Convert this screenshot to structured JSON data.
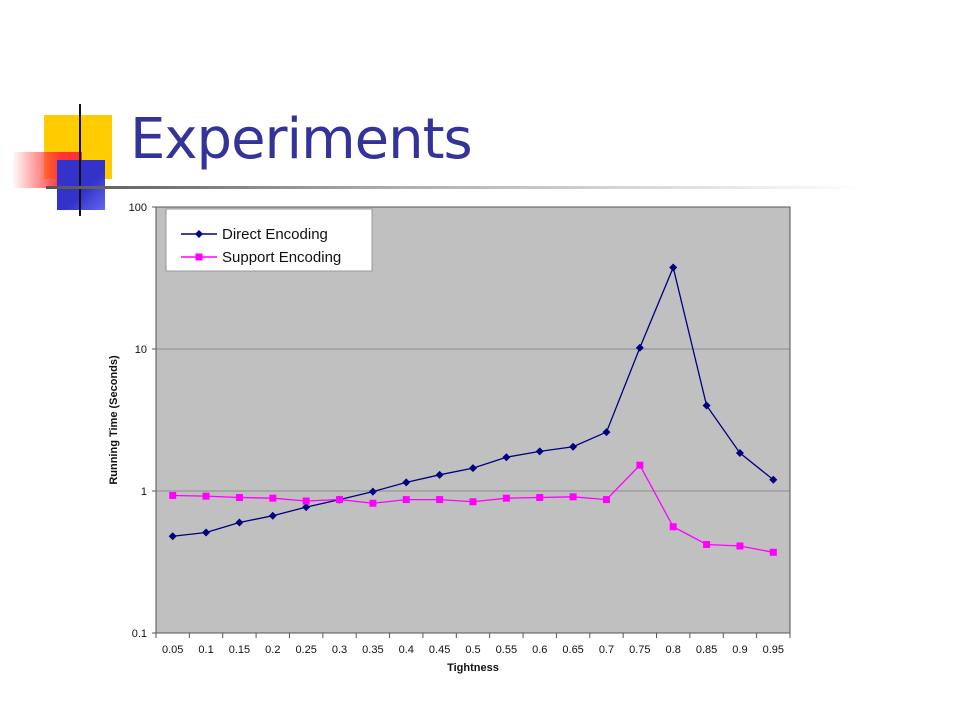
{
  "slide": {
    "title": "Experiments",
    "colors": {
      "title": "#333399",
      "deco_yellow": "#ffcc00",
      "deco_blue": "#3333cc",
      "deco_red": "#ff3333"
    }
  },
  "chart_data": {
    "type": "line",
    "title": "",
    "xlabel": "Tightness",
    "ylabel": "Running Time (Seconds)",
    "yscale": "log",
    "ylim": [
      0.1,
      100
    ],
    "yticks": [
      0.1,
      1,
      10,
      100
    ],
    "ytick_labels": [
      "0.1",
      "1",
      "10",
      "100"
    ],
    "grid": "horizontal",
    "legend": "top-left",
    "plot_background": "#c0c0c0",
    "x": [
      "0.05",
      "0.1",
      "0.15",
      "0.2",
      "0.25",
      "0.3",
      "0.35",
      "0.4",
      "0.45",
      "0.5",
      "0.55",
      "0.6",
      "0.65",
      "0.7",
      "0.75",
      "0.8",
      "0.85",
      "0.9",
      "0.95"
    ],
    "series": [
      {
        "name": "Direct Encoding",
        "color": "#000080",
        "marker": "diamond",
        "values": [
          0.48,
          0.51,
          0.6,
          0.67,
          0.77,
          0.87,
          0.99,
          1.15,
          1.3,
          1.45,
          1.73,
          1.9,
          2.05,
          2.6,
          10.2,
          37.5,
          4.0,
          1.85,
          1.2
        ]
      },
      {
        "name": "Support Encoding",
        "color": "#ff00ff",
        "marker": "square",
        "values": [
          0.93,
          0.92,
          0.9,
          0.89,
          0.85,
          0.87,
          0.82,
          0.87,
          0.87,
          0.84,
          0.89,
          0.9,
          0.91,
          0.87,
          1.52,
          0.56,
          0.42,
          0.41,
          0.37
        ]
      }
    ]
  }
}
